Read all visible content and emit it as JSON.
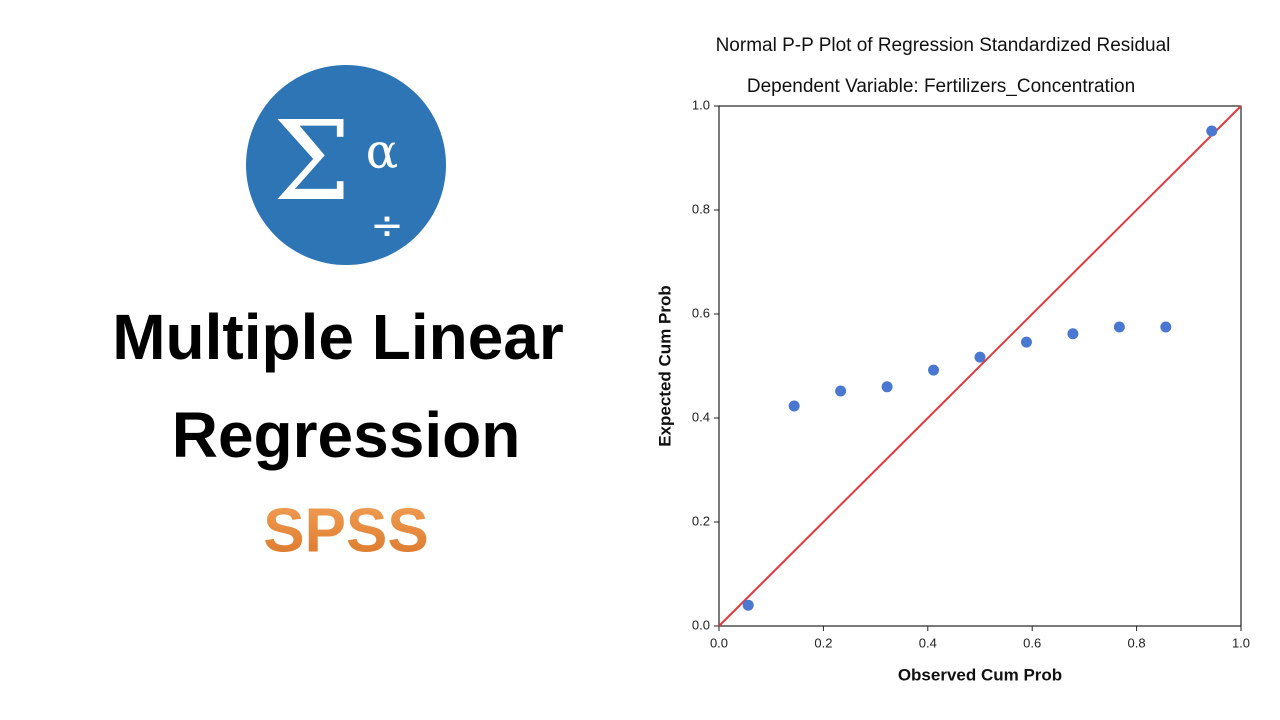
{
  "headline": [
    "Multiple Linear",
    "Regression"
  ],
  "tagline": "SPSS",
  "logo": {
    "symbols": [
      "Σ",
      "α",
      "÷"
    ]
  },
  "chart_data": {
    "type": "scatter",
    "title": "Normal P-P Plot of Regression Standardized Residual",
    "subtitle": "Dependent Variable: Fertilizers_Concentration",
    "x_label": "Observed Cum Prob",
    "y_label": "Expected Cum Prob",
    "x": [
      0.056,
      0.144,
      0.233,
      0.322,
      0.411,
      0.5,
      0.589,
      0.678,
      0.767,
      0.856,
      0.944
    ],
    "series": [
      {
        "color": "#4a78d0",
        "values": [
          0.04,
          0.423,
          0.452,
          0.46,
          0.492,
          0.517,
          0.546,
          0.562,
          0.575,
          0.575,
          0.952
        ]
      }
    ],
    "xlim": [
      0,
      1
    ],
    "ylim": [
      0,
      1
    ],
    "xticks": [
      {
        "value": 0,
        "label": "0.0"
      },
      0.2,
      0.4,
      0.6,
      0.8,
      {
        "value": 1,
        "label": "1.0"
      }
    ],
    "yticks": [
      {
        "value": 0,
        "label": "0.0"
      },
      0.2,
      0.4,
      0.6,
      0.8,
      {
        "value": 1,
        "label": "1.0"
      }
    ],
    "reference_line_color": "#e0393e",
    "grid": false
  }
}
